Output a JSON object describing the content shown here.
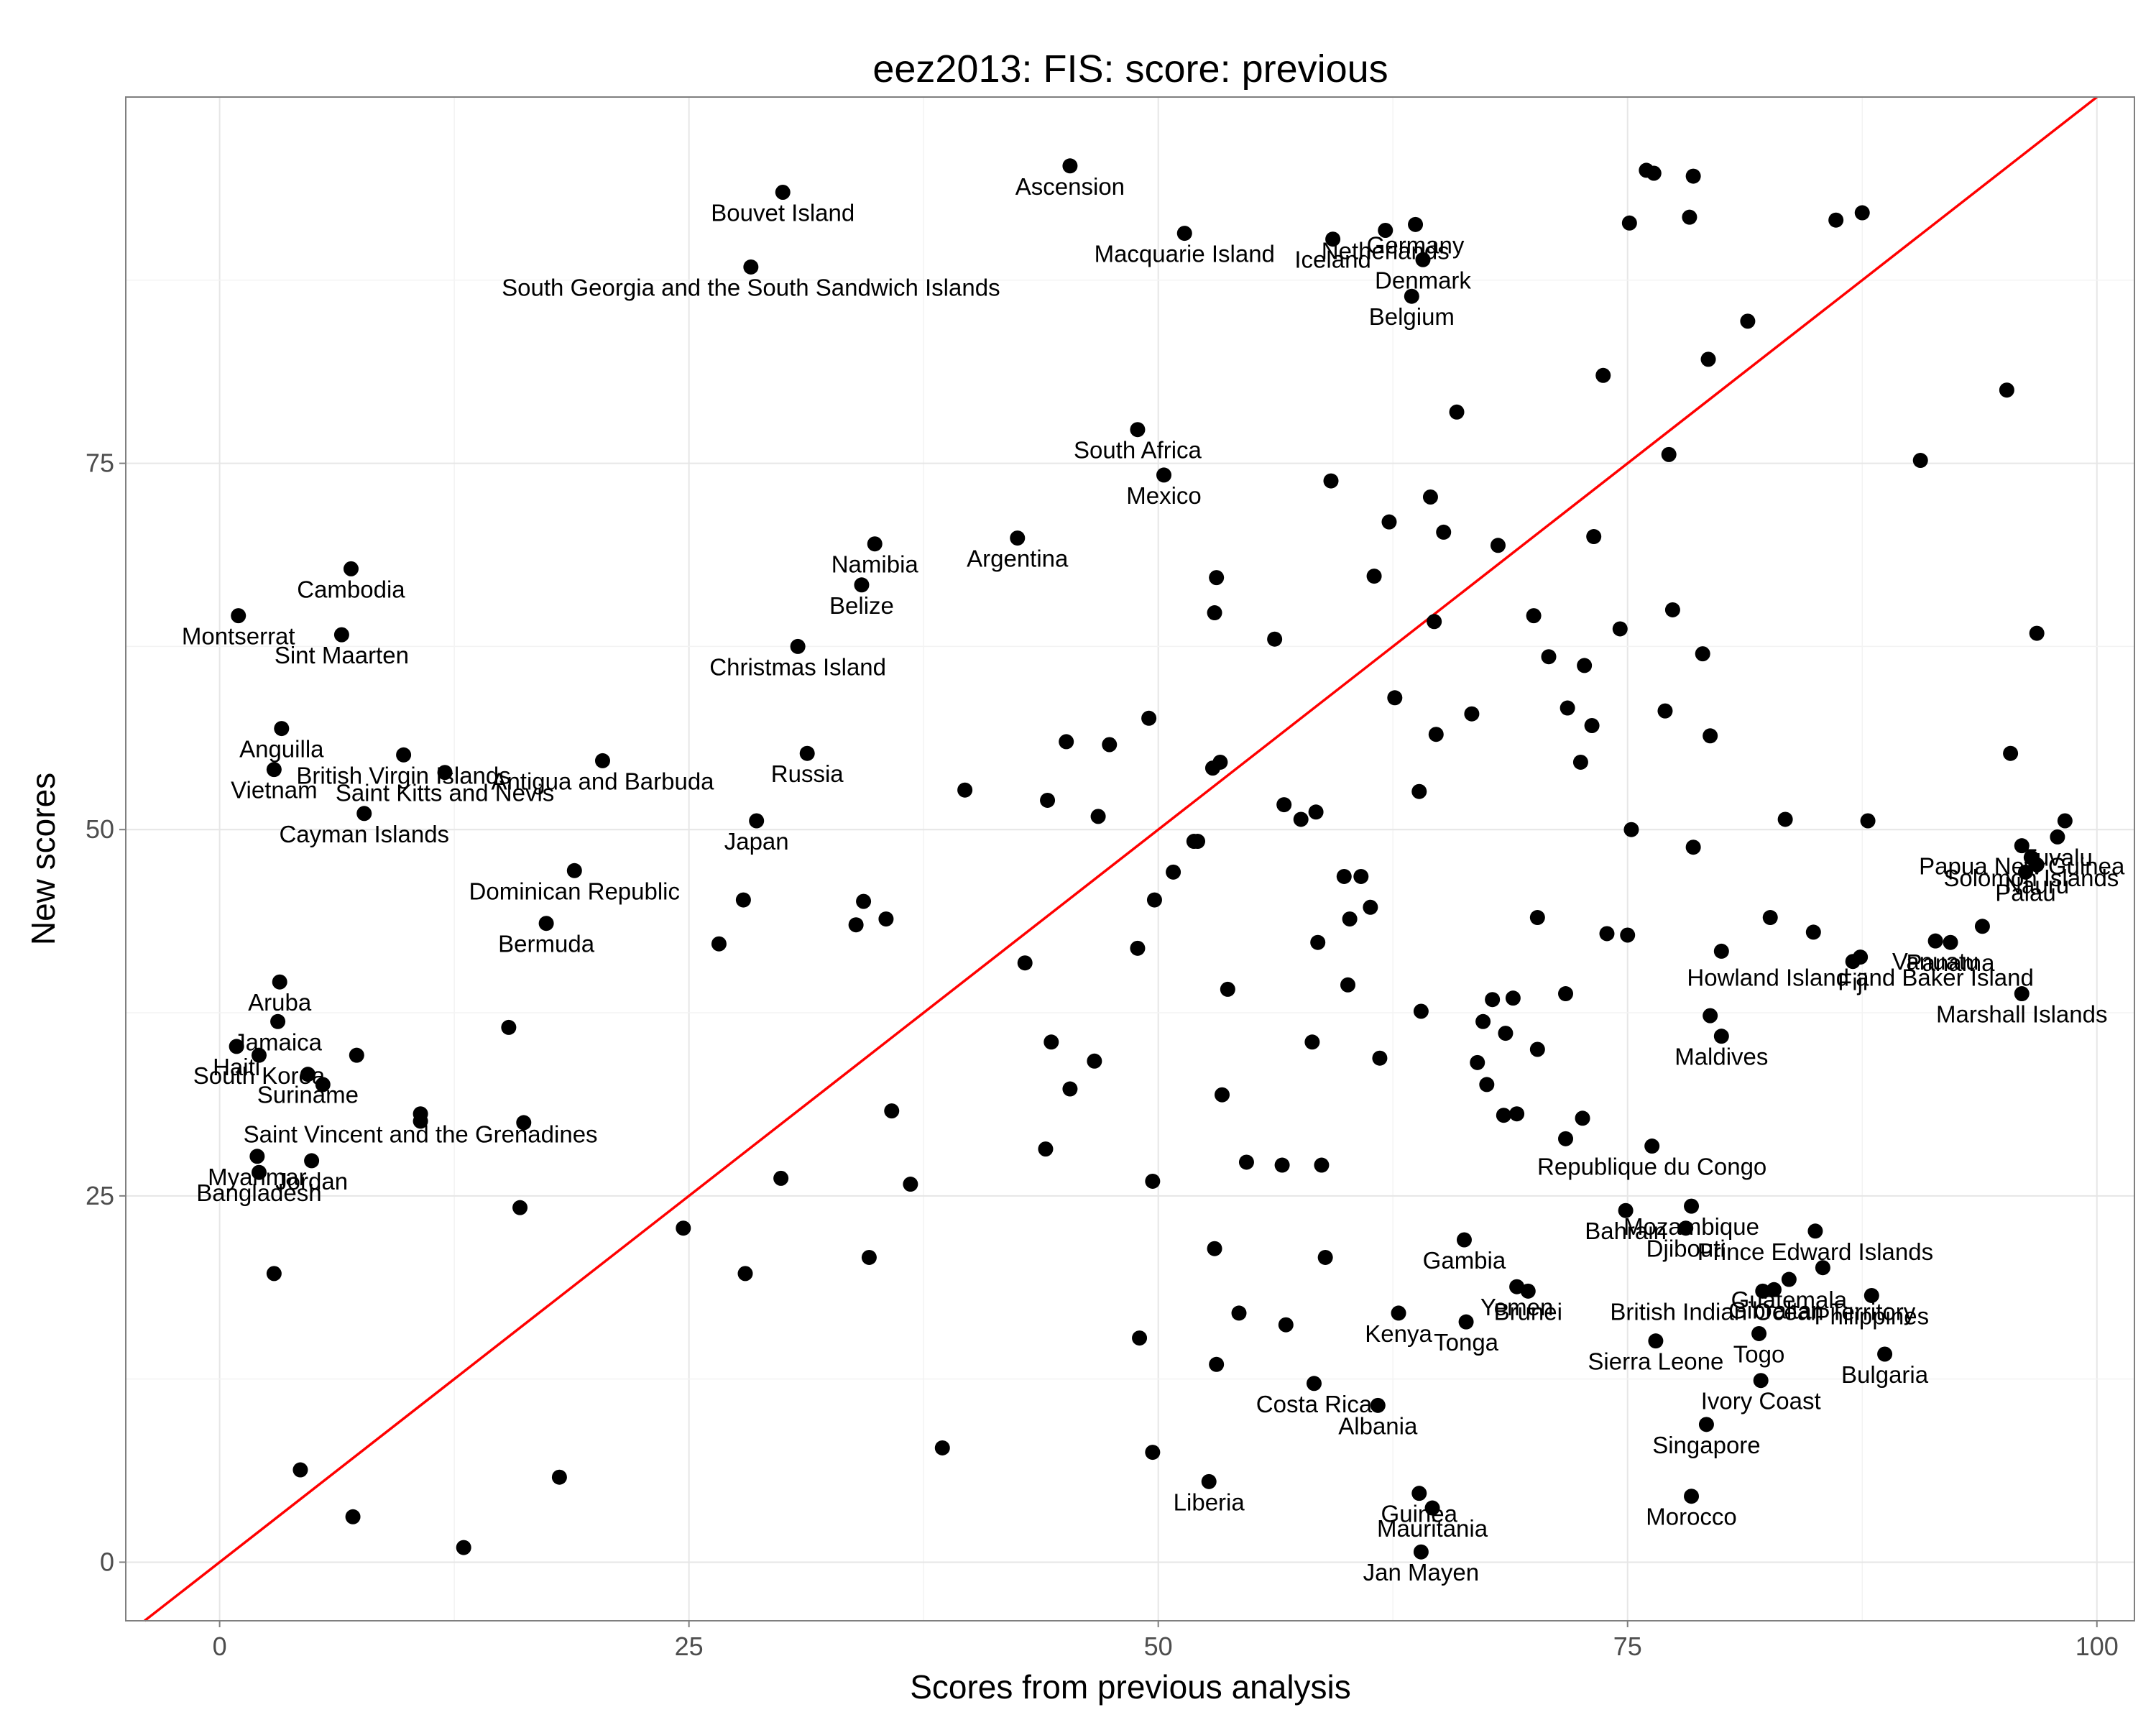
{
  "chart_data": {
    "type": "scatter",
    "title": "eez2013: FIS: score: previous",
    "xlabel": "Scores from previous analysis",
    "ylabel": "New scores",
    "xlim": [
      -5,
      102
    ],
    "ylim": [
      -4,
      100
    ],
    "xticks": [
      0,
      25,
      50,
      75,
      100
    ],
    "yticks": [
      0,
      25,
      50,
      75
    ],
    "xtick_labels": [
      "0",
      "25",
      "50",
      "75",
      "100"
    ],
    "ytick_labels": [
      "0",
      "25",
      "50",
      "75"
    ],
    "grid": true,
    "reference_line": {
      "slope": 1,
      "intercept": 0,
      "color": "#ff0000"
    },
    "point_color": "#000000",
    "points": [
      {
        "x": 45.3,
        "y": 95.3,
        "label": "Ascension"
      },
      {
        "x": 30.0,
        "y": 93.5,
        "label": "Bouvet Island"
      },
      {
        "x": 28.3,
        "y": 88.4,
        "label": "South Georgia and the South Sandwich Islands"
      },
      {
        "x": 51.4,
        "y": 90.7,
        "label": "Macquarie Island"
      },
      {
        "x": 59.3,
        "y": 90.3,
        "label": "Iceland"
      },
      {
        "x": 62.1,
        "y": 90.9,
        "label": "Netherlands"
      },
      {
        "x": 63.7,
        "y": 91.3,
        "label": "Germany"
      },
      {
        "x": 64.1,
        "y": 88.9,
        "label": "Denmark"
      },
      {
        "x": 63.5,
        "y": 86.4,
        "label": "Belgium"
      },
      {
        "x": 48.9,
        "y": 77.3,
        "label": "South Africa"
      },
      {
        "x": 50.3,
        "y": 74.2,
        "label": "Mexico"
      },
      {
        "x": 42.5,
        "y": 69.9,
        "label": "Argentina"
      },
      {
        "x": 34.9,
        "y": 69.5,
        "label": "Namibia"
      },
      {
        "x": 34.2,
        "y": 66.7,
        "label": "Belize"
      },
      {
        "x": 30.8,
        "y": 62.5,
        "label": "Christmas Island"
      },
      {
        "x": 7.0,
        "y": 67.8,
        "label": "Cambodia"
      },
      {
        "x": 1.0,
        "y": 64.6,
        "label": "Montserrat"
      },
      {
        "x": 6.5,
        "y": 63.3,
        "label": "Sint Maarten"
      },
      {
        "x": 3.3,
        "y": 56.9,
        "label": "Anguilla"
      },
      {
        "x": 9.8,
        "y": 55.1,
        "label": "British Virgin Islands"
      },
      {
        "x": 2.9,
        "y": 54.1,
        "label": "Vietnam"
      },
      {
        "x": 12.0,
        "y": 53.9,
        "label": "Saint Kitts and Nevis"
      },
      {
        "x": 20.4,
        "y": 54.7,
        "label": "Antigua and Barbuda"
      },
      {
        "x": 31.3,
        "y": 55.2,
        "label": "Russia"
      },
      {
        "x": 7.7,
        "y": 51.1,
        "label": "Cayman Islands"
      },
      {
        "x": 28.6,
        "y": 50.6,
        "label": "Japan"
      },
      {
        "x": 18.9,
        "y": 47.2,
        "label": "Dominican Republic"
      },
      {
        "x": 17.4,
        "y": 43.6,
        "label": "Bermuda"
      },
      {
        "x": 3.2,
        "y": 39.6,
        "label": "Aruba"
      },
      {
        "x": 3.1,
        "y": 36.9,
        "label": "Jamaica"
      },
      {
        "x": 0.9,
        "y": 35.2,
        "label": "Haiti"
      },
      {
        "x": 2.1,
        "y": 34.6,
        "label": "South Korea"
      },
      {
        "x": 4.7,
        "y": 33.3,
        "label": "Suriname"
      },
      {
        "x": 10.7,
        "y": 30.6,
        "label": "Saint Vincent and the Grenadines"
      },
      {
        "x": 2.0,
        "y": 27.7,
        "label": "Myanmar"
      },
      {
        "x": 4.9,
        "y": 27.4,
        "label": "Jordan"
      },
      {
        "x": 2.1,
        "y": 26.6,
        "label": "Bangladesh"
      },
      {
        "x": 96.0,
        "y": 48.9,
        "label": "Papua New Guinea"
      },
      {
        "x": 97.9,
        "y": 49.5,
        "label": "Tuvalu"
      },
      {
        "x": 96.5,
        "y": 48.1,
        "label": "Solomon Islands"
      },
      {
        "x": 96.8,
        "y": 47.6,
        "label": "Nauru"
      },
      {
        "x": 96.2,
        "y": 47.1,
        "label": "Palau"
      },
      {
        "x": 92.2,
        "y": 42.3,
        "label": "Panama"
      },
      {
        "x": 91.4,
        "y": 42.4,
        "label": "Vanuatu"
      },
      {
        "x": 87.4,
        "y": 41.3,
        "label": "Howland Island and Baker Island"
      },
      {
        "x": 87.0,
        "y": 41.0,
        "label": "Fiji"
      },
      {
        "x": 96.0,
        "y": 38.8,
        "label": "Marshall Islands"
      },
      {
        "x": 80.0,
        "y": 35.9,
        "label": "Maldives"
      },
      {
        "x": 76.3,
        "y": 28.4,
        "label": "Republique du Congo"
      },
      {
        "x": 78.4,
        "y": 24.3,
        "label": "Mozambique"
      },
      {
        "x": 74.9,
        "y": 24.0,
        "label": "Bahrain"
      },
      {
        "x": 78.1,
        "y": 22.8,
        "label": "Djibouti"
      },
      {
        "x": 85.0,
        "y": 22.6,
        "label": "Prince Edward Islands"
      },
      {
        "x": 66.3,
        "y": 22.0,
        "label": "Gambia"
      },
      {
        "x": 83.6,
        "y": 19.3,
        "label": "Guatemala"
      },
      {
        "x": 82.8,
        "y": 18.6,
        "label": "Gibraltar"
      },
      {
        "x": 82.2,
        "y": 18.5,
        "label": "British Indian Ocean Territory"
      },
      {
        "x": 88.0,
        "y": 18.2,
        "label": "Philippines"
      },
      {
        "x": 69.7,
        "y": 18.5,
        "label": "Brunei"
      },
      {
        "x": 69.1,
        "y": 18.8,
        "label": "Yemen"
      },
      {
        "x": 62.8,
        "y": 17.0,
        "label": "Kenya"
      },
      {
        "x": 66.4,
        "y": 16.4,
        "label": "Tonga"
      },
      {
        "x": 82.0,
        "y": 15.6,
        "label": "Togo"
      },
      {
        "x": 76.5,
        "y": 15.1,
        "label": "Sierra Leone"
      },
      {
        "x": 88.7,
        "y": 14.2,
        "label": "Bulgaria"
      },
      {
        "x": 82.1,
        "y": 12.4,
        "label": "Ivory Coast"
      },
      {
        "x": 58.3,
        "y": 12.2,
        "label": "Costa Rica"
      },
      {
        "x": 61.7,
        "y": 10.7,
        "label": "Albania"
      },
      {
        "x": 79.2,
        "y": 9.4,
        "label": "Singapore"
      },
      {
        "x": 52.7,
        "y": 5.5,
        "label": "Liberia"
      },
      {
        "x": 78.4,
        "y": 4.5,
        "label": "Morocco"
      },
      {
        "x": 63.9,
        "y": 4.7,
        "label": "Guinea"
      },
      {
        "x": 64.6,
        "y": 3.7,
        "label": "Mauritania"
      },
      {
        "x": 64.0,
        "y": 0.7,
        "label": "Jan Mayen"
      },
      {
        "x": 76.0,
        "y": 95.0
      },
      {
        "x": 76.4,
        "y": 94.8
      },
      {
        "x": 78.5,
        "y": 94.6
      },
      {
        "x": 87.5,
        "y": 92.1
      },
      {
        "x": 86.1,
        "y": 91.6
      },
      {
        "x": 75.1,
        "y": 91.4
      },
      {
        "x": 78.3,
        "y": 91.8
      },
      {
        "x": 81.4,
        "y": 84.7
      },
      {
        "x": 79.3,
        "y": 82.1
      },
      {
        "x": 73.7,
        "y": 81.0
      },
      {
        "x": 95.2,
        "y": 80.0
      },
      {
        "x": 65.9,
        "y": 78.5
      },
      {
        "x": 90.6,
        "y": 75.2
      },
      {
        "x": 77.2,
        "y": 75.6
      },
      {
        "x": 59.2,
        "y": 73.8
      },
      {
        "x": 64.5,
        "y": 72.7
      },
      {
        "x": 62.3,
        "y": 71.0
      },
      {
        "x": 65.2,
        "y": 70.3
      },
      {
        "x": 68.1,
        "y": 69.4
      },
      {
        "x": 73.2,
        "y": 70.0
      },
      {
        "x": 61.5,
        "y": 67.3
      },
      {
        "x": 53.1,
        "y": 67.2
      },
      {
        "x": 53.0,
        "y": 64.8
      },
      {
        "x": 70.0,
        "y": 64.6
      },
      {
        "x": 77.4,
        "y": 65.0
      },
      {
        "x": 64.7,
        "y": 64.2
      },
      {
        "x": 74.6,
        "y": 63.7
      },
      {
        "x": 56.2,
        "y": 63.0
      },
      {
        "x": 96.8,
        "y": 63.4
      },
      {
        "x": 79.0,
        "y": 62.0
      },
      {
        "x": 70.8,
        "y": 61.8
      },
      {
        "x": 72.7,
        "y": 61.2
      },
      {
        "x": 62.6,
        "y": 59.0
      },
      {
        "x": 71.8,
        "y": 58.3
      },
      {
        "x": 77.0,
        "y": 58.1
      },
      {
        "x": 66.7,
        "y": 57.9
      },
      {
        "x": 73.1,
        "y": 57.1
      },
      {
        "x": 49.5,
        "y": 57.6
      },
      {
        "x": 64.8,
        "y": 56.5
      },
      {
        "x": 79.4,
        "y": 56.4
      },
      {
        "x": 45.1,
        "y": 56.0
      },
      {
        "x": 47.4,
        "y": 55.8
      },
      {
        "x": 95.4,
        "y": 55.2
      },
      {
        "x": 53.3,
        "y": 54.6
      },
      {
        "x": 52.9,
        "y": 54.2
      },
      {
        "x": 72.5,
        "y": 54.6
      },
      {
        "x": 39.7,
        "y": 52.7
      },
      {
        "x": 44.1,
        "y": 52.0
      },
      {
        "x": 63.9,
        "y": 52.6
      },
      {
        "x": 56.7,
        "y": 51.7
      },
      {
        "x": 46.8,
        "y": 50.9
      },
      {
        "x": 57.6,
        "y": 50.7
      },
      {
        "x": 58.4,
        "y": 51.2
      },
      {
        "x": 83.4,
        "y": 50.7
      },
      {
        "x": 87.8,
        "y": 50.6
      },
      {
        "x": 98.3,
        "y": 50.6
      },
      {
        "x": 75.2,
        "y": 50.0
      },
      {
        "x": 52.1,
        "y": 49.2
      },
      {
        "x": 51.9,
        "y": 49.2
      },
      {
        "x": 78.5,
        "y": 48.8
      },
      {
        "x": 50.8,
        "y": 47.1
      },
      {
        "x": 59.9,
        "y": 46.8
      },
      {
        "x": 60.8,
        "y": 46.8
      },
      {
        "x": 34.3,
        "y": 45.1
      },
      {
        "x": 27.9,
        "y": 45.2
      },
      {
        "x": 49.8,
        "y": 45.2
      },
      {
        "x": 61.3,
        "y": 44.7
      },
      {
        "x": 35.5,
        "y": 43.9
      },
      {
        "x": 33.9,
        "y": 43.5
      },
      {
        "x": 60.2,
        "y": 43.9
      },
      {
        "x": 70.2,
        "y": 44.0
      },
      {
        "x": 82.6,
        "y": 44.0
      },
      {
        "x": 84.9,
        "y": 43.0
      },
      {
        "x": 93.9,
        "y": 43.4
      },
      {
        "x": 73.9,
        "y": 42.9
      },
      {
        "x": 75.0,
        "y": 42.8
      },
      {
        "x": 26.6,
        "y": 42.2
      },
      {
        "x": 58.5,
        "y": 42.3
      },
      {
        "x": 48.9,
        "y": 41.9
      },
      {
        "x": 80.0,
        "y": 41.7
      },
      {
        "x": 42.9,
        "y": 40.9
      },
      {
        "x": 60.1,
        "y": 39.4
      },
      {
        "x": 53.7,
        "y": 39.1
      },
      {
        "x": 71.7,
        "y": 38.8
      },
      {
        "x": 67.8,
        "y": 38.4
      },
      {
        "x": 68.9,
        "y": 38.5
      },
      {
        "x": 64.0,
        "y": 37.6
      },
      {
        "x": 79.4,
        "y": 37.3
      },
      {
        "x": 67.3,
        "y": 36.9
      },
      {
        "x": 15.4,
        "y": 36.5
      },
      {
        "x": 68.5,
        "y": 36.1
      },
      {
        "x": 44.3,
        "y": 35.5
      },
      {
        "x": 58.2,
        "y": 35.5
      },
      {
        "x": 7.3,
        "y": 34.6
      },
      {
        "x": 70.2,
        "y": 35.0
      },
      {
        "x": 61.8,
        "y": 34.4
      },
      {
        "x": 46.6,
        "y": 34.2
      },
      {
        "x": 67.0,
        "y": 34.1
      },
      {
        "x": 5.5,
        "y": 32.6
      },
      {
        "x": 67.5,
        "y": 32.6
      },
      {
        "x": 45.3,
        "y": 32.3
      },
      {
        "x": 53.4,
        "y": 31.9
      },
      {
        "x": 10.7,
        "y": 30.1
      },
      {
        "x": 16.2,
        "y": 30.0
      },
      {
        "x": 35.8,
        "y": 30.8
      },
      {
        "x": 68.4,
        "y": 30.5
      },
      {
        "x": 69.1,
        "y": 30.6
      },
      {
        "x": 72.6,
        "y": 30.3
      },
      {
        "x": 71.7,
        "y": 28.9
      },
      {
        "x": 44.0,
        "y": 28.2
      },
      {
        "x": 54.7,
        "y": 27.3
      },
      {
        "x": 56.6,
        "y": 27.1
      },
      {
        "x": 58.7,
        "y": 27.1
      },
      {
        "x": 29.9,
        "y": 26.2
      },
      {
        "x": 36.8,
        "y": 25.8
      },
      {
        "x": 49.7,
        "y": 26.0
      },
      {
        "x": 16.0,
        "y": 24.2
      },
      {
        "x": 24.7,
        "y": 22.8
      },
      {
        "x": 53.0,
        "y": 21.4
      },
      {
        "x": 34.6,
        "y": 20.8
      },
      {
        "x": 58.9,
        "y": 20.8
      },
      {
        "x": 28.0,
        "y": 19.7
      },
      {
        "x": 2.9,
        "y": 19.7
      },
      {
        "x": 85.4,
        "y": 20.1
      },
      {
        "x": 54.3,
        "y": 17.0
      },
      {
        "x": 56.8,
        "y": 16.2
      },
      {
        "x": 49.0,
        "y": 15.3
      },
      {
        "x": 53.1,
        "y": 13.5
      },
      {
        "x": 38.5,
        "y": 7.8
      },
      {
        "x": 49.7,
        "y": 7.5
      },
      {
        "x": 4.3,
        "y": 6.3
      },
      {
        "x": 18.1,
        "y": 5.8
      },
      {
        "x": 7.1,
        "y": 3.1
      },
      {
        "x": 13.0,
        "y": 1.0
      }
    ]
  }
}
